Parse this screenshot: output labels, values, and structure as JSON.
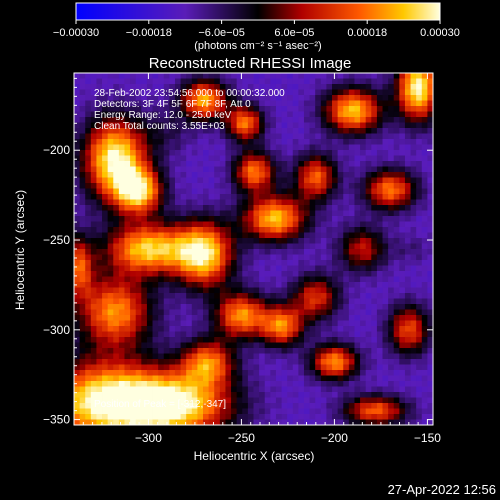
{
  "chart_data": {
    "type": "heatmap",
    "title": "Reconstructed RHESSI Image",
    "xlabel": "Heliocentric X (arcsec)",
    "ylabel": "Heliocentric Y (arcsec)",
    "xlim": [
      -340,
      -147
    ],
    "ylim": [
      -353,
      -157
    ],
    "x_ticks": [
      {
        "value": -300,
        "label": "−300"
      },
      {
        "value": -250,
        "label": "−250"
      },
      {
        "value": -200,
        "label": "−200"
      },
      {
        "value": -150,
        "label": "−150"
      }
    ],
    "y_ticks": [
      {
        "value": -200,
        "label": "−200"
      },
      {
        "value": -250,
        "label": "−250"
      },
      {
        "value": -300,
        "label": "−300"
      },
      {
        "value": -350,
        "label": "−350"
      }
    ],
    "colorbar": {
      "range": [
        -0.0003,
        0.0003
      ],
      "ticks": [
        {
          "value": -0.0003,
          "label": "−0.00030"
        },
        {
          "value": -0.00018,
          "label": "−0.00018"
        },
        {
          "value": -6e-05,
          "label": "−6.0e−05"
        },
        {
          "value": 6e-05,
          "label": "6.0e−05"
        },
        {
          "value": 0.00018,
          "label": "0.00018"
        },
        {
          "value": 0.0003,
          "label": "0.00030"
        }
      ],
      "unit_label": "(photons cm⁻² s⁻¹ asec⁻²)"
    },
    "annotations": [
      "28-Feb-2002 23:54:56.000 to 00:00:32.000",
      "Detectors: 3F 4F 5F 6F 7F 8F, Att 0",
      "Energy Range: 12.0 - 25.0 keV",
      "Clean    Total counts: 3.55E+03"
    ],
    "peak_label": "Position of Peak = [-312,-347]",
    "hotspots": [
      {
        "x": -318,
        "y": -205,
        "value": 0.0003,
        "sx": 12,
        "sy": 16
      },
      {
        "x": -305,
        "y": -223,
        "value": 0.00022,
        "sx": 9,
        "sy": 9
      },
      {
        "x": -325,
        "y": -340,
        "value": 0.00028,
        "sx": 24,
        "sy": 16
      },
      {
        "x": -285,
        "y": -342,
        "value": 0.00026,
        "sx": 22,
        "sy": 13
      },
      {
        "x": -318,
        "y": -290,
        "value": 0.0002,
        "sx": 14,
        "sy": 14
      },
      {
        "x": -300,
        "y": -255,
        "value": 0.00025,
        "sx": 16,
        "sy": 10
      },
      {
        "x": -270,
        "y": -258,
        "value": 0.00026,
        "sx": 11,
        "sy": 13
      },
      {
        "x": -250,
        "y": -292,
        "value": 0.0002,
        "sx": 10,
        "sy": 9
      },
      {
        "x": -232,
        "y": -238,
        "value": 0.00024,
        "sx": 12,
        "sy": 9
      },
      {
        "x": -243,
        "y": -212,
        "value": 0.00018,
        "sx": 8,
        "sy": 8
      },
      {
        "x": -270,
        "y": -172,
        "value": 0.00022,
        "sx": 9,
        "sy": 8
      },
      {
        "x": -248,
        "y": -185,
        "value": 0.00018,
        "sx": 7,
        "sy": 7
      },
      {
        "x": -210,
        "y": -215,
        "value": 0.00016,
        "sx": 8,
        "sy": 9
      },
      {
        "x": -190,
        "y": -178,
        "value": 0.00024,
        "sx": 11,
        "sy": 9
      },
      {
        "x": -170,
        "y": -222,
        "value": 0.00018,
        "sx": 10,
        "sy": 8
      },
      {
        "x": -155,
        "y": -165,
        "value": 0.0003,
        "sx": 8,
        "sy": 13
      },
      {
        "x": -228,
        "y": -298,
        "value": 0.00018,
        "sx": 8,
        "sy": 8
      },
      {
        "x": -210,
        "y": -282,
        "value": 0.00012,
        "sx": 9,
        "sy": 9
      },
      {
        "x": -200,
        "y": -318,
        "value": 0.0002,
        "sx": 9,
        "sy": 7
      },
      {
        "x": -178,
        "y": -345,
        "value": 0.00016,
        "sx": 12,
        "sy": 6
      },
      {
        "x": -160,
        "y": -300,
        "value": 0.00014,
        "sx": 8,
        "sy": 10
      },
      {
        "x": -268,
        "y": -318,
        "value": 0.00016,
        "sx": 10,
        "sy": 9
      },
      {
        "x": -338,
        "y": -265,
        "value": 0.00014,
        "sx": 6,
        "sy": 12
      },
      {
        "x": -185,
        "y": -255,
        "value": 9e-05,
        "sx": 9,
        "sy": 9
      },
      {
        "x": -158,
        "y": -255,
        "value": -8e-05,
        "sx": 8,
        "sy": 6
      },
      {
        "x": -290,
        "y": -190,
        "value": -6e-05,
        "sx": 10,
        "sy": 9
      }
    ]
  },
  "footer": {
    "timestamp": "27-Apr-2022 12:56"
  }
}
